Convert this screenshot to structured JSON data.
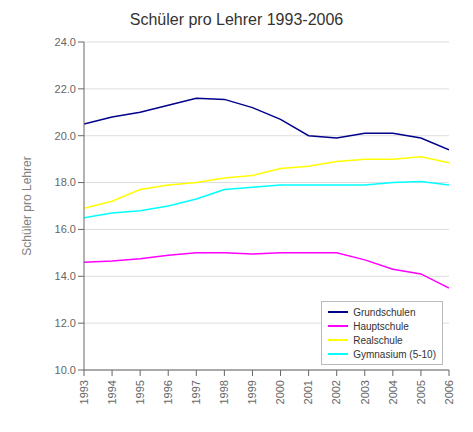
{
  "chart_data": {
    "type": "line",
    "title": "Schüler pro Lehrer 1993-2006",
    "ylabel": "Schüler pro Lehrer",
    "x": [
      1993,
      1994,
      1995,
      1996,
      1997,
      1998,
      1999,
      2000,
      2001,
      2002,
      2003,
      2004,
      2005,
      2006
    ],
    "xlim": [
      1993,
      2006
    ],
    "xticks": [
      1993,
      1994,
      1995,
      1996,
      1997,
      1998,
      1999,
      2000,
      2001,
      2002,
      2003,
      2004,
      2005,
      2006
    ],
    "ylim": [
      10.0,
      24.0
    ],
    "yticks": [
      {
        "value": 10.0,
        "label": "10.0"
      },
      {
        "value": 12.0,
        "label": "12.0"
      },
      {
        "value": 14.0,
        "label": "14.0"
      },
      {
        "value": 16.0,
        "label": "16.0"
      },
      {
        "value": 18.0,
        "label": "18.0"
      },
      {
        "value": 20.0,
        "label": "20.0"
      },
      {
        "value": 22.0,
        "label": "22.0"
      },
      {
        "value": 24.0,
        "label": "24.0"
      }
    ],
    "grid": true,
    "legend": "lower right",
    "series": [
      {
        "name": "Grundschulen",
        "color": "#00008B",
        "values": [
          20.5,
          20.8,
          21.0,
          21.3,
          21.6,
          21.55,
          21.2,
          20.7,
          20.0,
          19.9,
          20.1,
          20.1,
          19.9,
          19.4
        ]
      },
      {
        "name": "Hauptschule",
        "color": "#FF00FF",
        "values": [
          14.6,
          14.65,
          14.75,
          14.9,
          15.0,
          15.0,
          14.95,
          15.0,
          15.0,
          15.0,
          14.7,
          14.3,
          14.1,
          13.5
        ]
      },
      {
        "name": "Realschule",
        "color": "#FFFF00",
        "values": [
          16.9,
          17.2,
          17.7,
          17.9,
          18.0,
          18.2,
          18.3,
          18.6,
          18.7,
          18.9,
          19.0,
          19.0,
          19.1,
          18.85
        ]
      },
      {
        "name": "Gymnasium (5-10)",
        "color": "#00FFFF",
        "values": [
          16.5,
          16.7,
          16.8,
          17.0,
          17.3,
          17.7,
          17.8,
          17.9,
          17.9,
          17.9,
          17.9,
          18.0,
          18.05,
          17.9
        ]
      }
    ]
  }
}
